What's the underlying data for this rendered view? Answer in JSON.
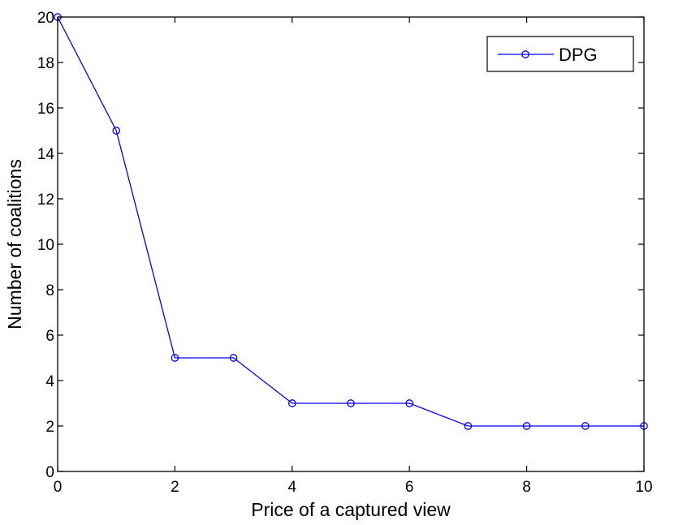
{
  "chart_data": {
    "type": "line",
    "title": "",
    "xlabel": "Price of a captured view",
    "ylabel": "Number of coalitions",
    "xlim": [
      0,
      10
    ],
    "ylim": [
      0,
      20
    ],
    "x_ticks": [
      "0",
      "2",
      "4",
      "6",
      "8",
      "10"
    ],
    "y_ticks": [
      "0",
      "2",
      "4",
      "6",
      "8",
      "10",
      "12",
      "14",
      "16",
      "18",
      "20"
    ],
    "grid": false,
    "legend_position": "top-right",
    "marker": "circle",
    "series": [
      {
        "name": "DPG",
        "color": "#0000ff",
        "x": [
          0,
          1,
          2,
          3,
          4,
          5,
          6,
          7,
          8,
          9,
          10
        ],
        "y": [
          20,
          15,
          5,
          5,
          3,
          3,
          3,
          2,
          2,
          2,
          2
        ]
      }
    ]
  }
}
